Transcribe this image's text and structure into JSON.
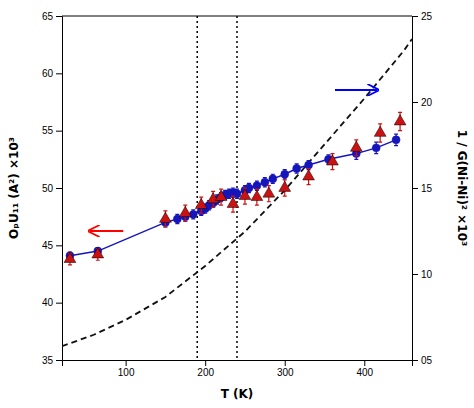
{
  "chart_data": {
    "type": "line",
    "xlabel": "T (K)",
    "ylabel": "OₚU₁₁ (A²) ×10³",
    "y2label": "1 / G(Ni-Ni)² ×10³",
    "xlim": [
      20,
      460
    ],
    "xticks": [
      100,
      200,
      300,
      400
    ],
    "ylim": [
      35,
      65
    ],
    "yticks": [
      35,
      40,
      45,
      50,
      55,
      60,
      65
    ],
    "y2lim": [
      5,
      25
    ],
    "y2ticks": [
      {
        "value": 5,
        "label": "05"
      },
      10,
      15,
      20,
      25
    ],
    "grid": false,
    "series": [
      {
        "type": "line",
        "line_style": "dashed",
        "color": "#111111",
        "x": [
          20,
          60,
          100,
          150,
          200,
          250,
          300,
          350,
          400,
          450,
          460
        ],
        "values": [
          36.2,
          37.2,
          38.5,
          40.5,
          43.2,
          46.2,
          49.8,
          53.8,
          57.8,
          62.0,
          63.0
        ]
      },
      {
        "type": "line",
        "line_style": "solid",
        "marker": "circle",
        "color": "#1515bb",
        "x": [
          30,
          65,
          150,
          165,
          175,
          185,
          195,
          200,
          205,
          210,
          215,
          220,
          225,
          230,
          235,
          240,
          250,
          255,
          265,
          275,
          285,
          300,
          315,
          330,
          355,
          390,
          415,
          440
        ],
        "values": [
          44.1,
          44.5,
          47.0,
          47.3,
          47.5,
          47.7,
          48.0,
          48.2,
          48.5,
          48.7,
          49.0,
          49.2,
          49.4,
          49.5,
          49.6,
          49.5,
          49.8,
          50.0,
          50.2,
          50.5,
          50.8,
          51.2,
          51.7,
          52.0,
          52.5,
          53.0,
          53.5,
          54.2
        ],
        "errors": [
          0.3,
          0.3,
          0.4,
          0.4,
          0.4,
          0.4,
          0.4,
          0.4,
          0.4,
          0.4,
          0.4,
          0.4,
          0.4,
          0.4,
          0.4,
          0.4,
          0.4,
          0.4,
          0.4,
          0.4,
          0.4,
          0.4,
          0.4,
          0.4,
          0.4,
          0.5,
          0.5,
          0.5
        ]
      },
      {
        "type": "scatter",
        "marker": "triangle",
        "color": "#cc1111",
        "x": [
          30,
          65,
          150,
          175,
          195,
          210,
          220,
          235,
          250,
          265,
          280,
          300,
          330,
          360,
          390,
          420,
          445
        ],
        "values": [
          43.8,
          44.2,
          47.3,
          47.8,
          48.5,
          49.0,
          49.2,
          48.6,
          49.3,
          49.2,
          49.5,
          50.0,
          51.0,
          52.3,
          53.5,
          54.8,
          55.8
        ],
        "errors": [
          0.5,
          0.5,
          0.7,
          0.7,
          0.7,
          0.7,
          0.7,
          0.7,
          0.7,
          0.7,
          0.7,
          0.7,
          0.7,
          0.7,
          0.7,
          0.8,
          0.8
        ]
      }
    ],
    "annotations": [
      {
        "type": "vline",
        "x": 190,
        "line_style": "dotted",
        "color": "black"
      },
      {
        "type": "vline",
        "x": 240,
        "line_style": "dotted",
        "color": "black"
      },
      {
        "type": "arrow",
        "direction": "left",
        "color": "red"
      },
      {
        "type": "arrow",
        "direction": "right",
        "color": "blue"
      }
    ]
  }
}
